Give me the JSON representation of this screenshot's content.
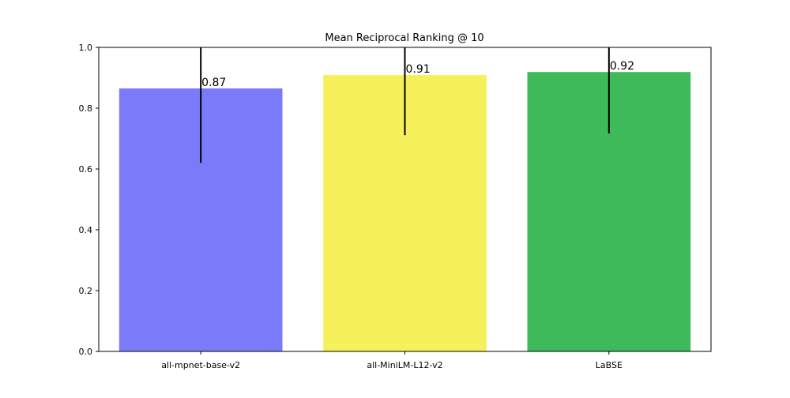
{
  "chart_data": {
    "type": "bar",
    "title": "Mean Reciprocal Ranking @ 10",
    "xlabel": "",
    "ylabel": "",
    "categories": [
      "all-mpnet-base-v2",
      "all-MiniLM-L12-v2",
      "LaBSE"
    ],
    "values": [
      0.865,
      0.909,
      0.919
    ],
    "value_labels": [
      "0.87",
      "0.91",
      "0.92"
    ],
    "errors": [
      0.245,
      0.198,
      0.202
    ],
    "colors": [
      "#7b7bf9",
      "#f6f15a",
      "#3fba5a"
    ],
    "ylim": [
      0,
      1
    ],
    "yticks": [
      0.0,
      0.2,
      0.4,
      0.6,
      0.8,
      1.0
    ],
    "ytick_labels": [
      "0.0",
      "0.2",
      "0.4",
      "0.6",
      "0.8",
      "1.0"
    ],
    "grid": false,
    "legend": "none"
  }
}
